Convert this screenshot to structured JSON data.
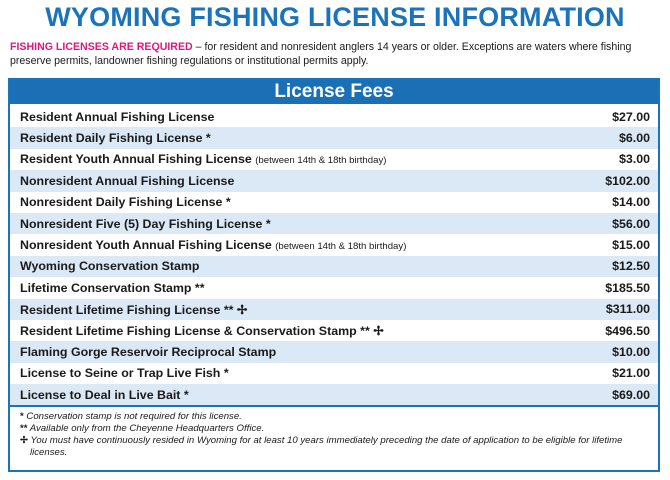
{
  "header": {
    "title": "WYOMING FISHING LICENSE INFORMATION",
    "intro_lead": "FISHING LICENSES ARE REQUIRED",
    "intro_text": " – for resident and nonresident anglers 14 years or older. Exceptions are waters where fishing preserve permits, landowner fishing regulations or institutional permits apply."
  },
  "table": {
    "title": "License Fees",
    "rows": [
      {
        "name": "Resident Annual Fishing License",
        "fee": "$27.00"
      },
      {
        "name": "Resident Daily Fishing License",
        "mark": "*",
        "fee": "$6.00"
      },
      {
        "name": "Resident Youth Annual Fishing License",
        "note": "(between 14th & 18th birthday)",
        "fee": "$3.00"
      },
      {
        "name": "Nonresident Annual Fishing License",
        "fee": "$102.00"
      },
      {
        "name": "Nonresident Daily Fishing License",
        "mark": "*",
        "fee": "$14.00"
      },
      {
        "name": "Nonresident Five (5) Day Fishing License",
        "mark": "*",
        "fee": "$56.00"
      },
      {
        "name": "Nonresident Youth Annual Fishing License",
        "note": "(between 14th & 18th birthday)",
        "fee": "$15.00"
      },
      {
        "name": "Wyoming Conservation Stamp",
        "fee": "$12.50"
      },
      {
        "name": "Lifetime Conservation Stamp",
        "mark": "**",
        "fee": "$185.50"
      },
      {
        "name": "Resident Lifetime Fishing License",
        "mark": "** ✢",
        "fee": "$311.00"
      },
      {
        "name": "Resident Lifetime Fishing License & Conservation Stamp",
        "mark": "** ✢",
        "fee": "$496.50"
      },
      {
        "name": "Flaming Gorge Reservoir Reciprocal Stamp",
        "fee": "$10.00"
      },
      {
        "name": "License to Seine or Trap Live Fish",
        "mark": "*",
        "fee": "$21.00"
      },
      {
        "name": "License to Deal in Live Bait",
        "mark": "*",
        "fee": "$69.00"
      }
    ]
  },
  "footnotes": [
    {
      "symbol": "*",
      "text": "Conservation stamp is not required for this license."
    },
    {
      "symbol": "**",
      "text": "Available only from the Cheyenne Headquarters Office."
    },
    {
      "symbol": "✢",
      "text": "You must have continuously resided in Wyoming for at least 10 years immediately preceding the date of application to be eligible for lifetime licenses."
    }
  ]
}
